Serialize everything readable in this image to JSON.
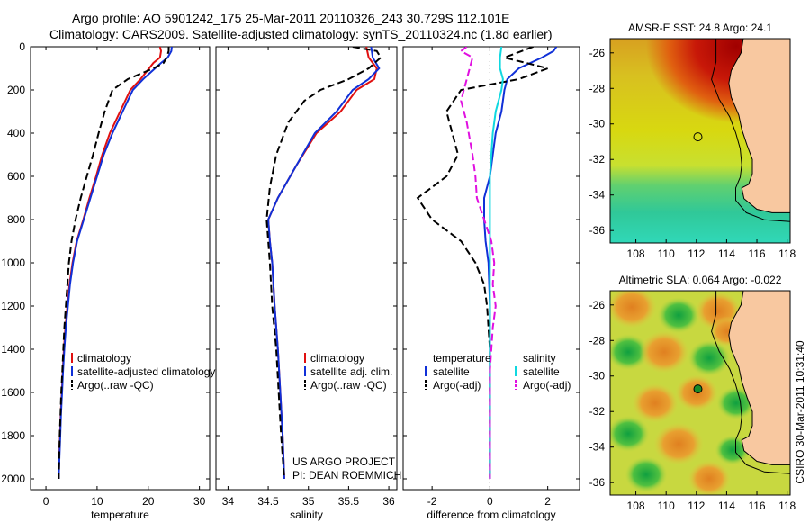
{
  "header": {
    "line1": "Argo profile: AO 5901242_175 25-Mar-2011 20110326_243 30.729S 112.101E",
    "line2": "Climatology: CARS2009. Satellite-adjusted climatology: synTS_20110324.nc (1.8d earlier)"
  },
  "chart_data": [
    {
      "type": "line",
      "id": "temperature",
      "xlabel": "temperature",
      "ylabel": "",
      "xlim": [
        -3,
        32
      ],
      "ylim": [
        2050,
        0
      ],
      "xticks": [
        0,
        10,
        20,
        30
      ],
      "yticks": [
        0,
        200,
        400,
        600,
        800,
        1000,
        1200,
        1400,
        1600,
        1800,
        2000
      ],
      "legend": [
        "climatology",
        "satellite-adjusted climatology",
        "Argo(..raw -QC)"
      ],
      "series": [
        {
          "name": "climatology",
          "color": "#e01010",
          "dash": "",
          "points": [
            [
              22.3,
              0
            ],
            [
              22.5,
              20
            ],
            [
              22.3,
              50
            ],
            [
              21.0,
              75
            ],
            [
              18.5,
              150
            ],
            [
              16.5,
              200
            ],
            [
              14.5,
              300
            ],
            [
              12.5,
              400
            ],
            [
              11.0,
              500
            ],
            [
              9.8,
              600
            ],
            [
              8.5,
              700
            ],
            [
              7.3,
              800
            ],
            [
              6.0,
              900
            ],
            [
              5.2,
              1000
            ],
            [
              4.6,
              1100
            ],
            [
              4.2,
              1200
            ],
            [
              3.8,
              1300
            ],
            [
              3.5,
              1400
            ],
            [
              3.3,
              1500
            ],
            [
              3.1,
              1600
            ],
            [
              2.9,
              1700
            ],
            [
              2.75,
              1800
            ],
            [
              2.6,
              1900
            ],
            [
              2.5,
              2000
            ]
          ]
        },
        {
          "name": "satellite-adjusted climatology",
          "color": "#1030d8",
          "dash": "",
          "points": [
            [
              24.6,
              0
            ],
            [
              24.5,
              20
            ],
            [
              23.8,
              50
            ],
            [
              22.5,
              75
            ],
            [
              19.0,
              150
            ],
            [
              17.0,
              200
            ],
            [
              15.0,
              300
            ],
            [
              13.0,
              400
            ],
            [
              11.3,
              500
            ],
            [
              10.0,
              600
            ],
            [
              8.7,
              700
            ],
            [
              7.4,
              800
            ],
            [
              6.1,
              900
            ],
            [
              5.3,
              1000
            ],
            [
              4.7,
              1100
            ],
            [
              4.3,
              1200
            ],
            [
              3.9,
              1300
            ],
            [
              3.6,
              1400
            ],
            [
              3.35,
              1500
            ],
            [
              3.15,
              1600
            ],
            [
              2.95,
              1700
            ],
            [
              2.8,
              1800
            ],
            [
              2.65,
              1900
            ],
            [
              2.5,
              2000
            ]
          ]
        },
        {
          "name": "Argo(..raw -QC)",
          "color": "#000000",
          "dash": "8,4",
          "points": [
            [
              24.0,
              0
            ],
            [
              24.0,
              20
            ],
            [
              23.6,
              50
            ],
            [
              23.0,
              75
            ],
            [
              21.0,
              100
            ],
            [
              16.0,
              150
            ],
            [
              13.0,
              200
            ],
            [
              11.5,
              300
            ],
            [
              10.3,
              400
            ],
            [
              9.2,
              500
            ],
            [
              8.0,
              600
            ],
            [
              6.8,
              700
            ],
            [
              5.8,
              800
            ],
            [
              5.0,
              900
            ],
            [
              4.5,
              1000
            ],
            [
              4.2,
              1100
            ],
            [
              3.9,
              1200
            ],
            [
              3.6,
              1300
            ],
            [
              3.4,
              1400
            ],
            [
              3.2,
              1500
            ],
            [
              3.0,
              1600
            ],
            [
              2.85,
              1700
            ],
            [
              2.7,
              1800
            ],
            [
              2.6,
              1900
            ],
            [
              2.5,
              2000
            ]
          ]
        }
      ]
    },
    {
      "type": "line",
      "id": "salinity",
      "xlabel": "salinity",
      "ylabel": "",
      "xlim": [
        33.85,
        36.1
      ],
      "ylim": [
        2050,
        0
      ],
      "xticks": [
        34,
        34.5,
        35,
        35.5,
        36
      ],
      "legend": [
        "climatology",
        "satellite adj. clim.",
        "Argo(..raw -QC)"
      ],
      "annotation": [
        "US ARGO PROJECT",
        "PI: DEAN ROEMMICH"
      ],
      "series": [
        {
          "name": "climatology",
          "color": "#e01010",
          "dash": "",
          "points": [
            [
              35.72,
              0
            ],
            [
              35.75,
              50
            ],
            [
              35.85,
              100
            ],
            [
              35.82,
              150
            ],
            [
              35.6,
              200
            ],
            [
              35.4,
              300
            ],
            [
              35.1,
              400
            ],
            [
              34.85,
              550
            ],
            [
              34.62,
              700
            ],
            [
              34.5,
              800
            ],
            [
              34.52,
              900
            ],
            [
              34.55,
              1000
            ],
            [
              34.58,
              1200
            ],
            [
              34.62,
              1400
            ],
            [
              34.65,
              1600
            ],
            [
              34.68,
              1800
            ],
            [
              34.7,
              2000
            ]
          ]
        },
        {
          "name": "satellite adj. clim.",
          "color": "#1030d8",
          "dash": "",
          "points": [
            [
              35.78,
              0
            ],
            [
              35.8,
              50
            ],
            [
              35.88,
              100
            ],
            [
              35.75,
              150
            ],
            [
              35.55,
              200
            ],
            [
              35.35,
              300
            ],
            [
              35.08,
              400
            ],
            [
              34.85,
              550
            ],
            [
              34.62,
              700
            ],
            [
              34.5,
              800
            ],
            [
              34.52,
              900
            ],
            [
              34.55,
              1000
            ],
            [
              34.58,
              1200
            ],
            [
              34.62,
              1400
            ],
            [
              34.65,
              1600
            ],
            [
              34.68,
              1800
            ],
            [
              34.7,
              2000
            ]
          ]
        },
        {
          "name": "Argo(..raw -QC)",
          "color": "#000000",
          "dash": "8,4",
          "points": [
            [
              35.55,
              0
            ],
            [
              35.85,
              20
            ],
            [
              35.9,
              50
            ],
            [
              35.75,
              100
            ],
            [
              35.5,
              150
            ],
            [
              35.15,
              200
            ],
            [
              34.95,
              250
            ],
            [
              34.75,
              350
            ],
            [
              34.6,
              500
            ],
            [
              34.52,
              650
            ],
            [
              34.48,
              800
            ],
            [
              34.5,
              900
            ],
            [
              34.52,
              1000
            ],
            [
              34.55,
              1200
            ],
            [
              34.6,
              1400
            ],
            [
              34.63,
              1600
            ],
            [
              34.66,
              1800
            ],
            [
              34.7,
              2000
            ]
          ]
        }
      ]
    },
    {
      "type": "line",
      "id": "difference",
      "xlabel": "difference from climatology",
      "ylabel": "",
      "xlim": [
        -3,
        3.1
      ],
      "ylim": [
        2050,
        0
      ],
      "xticks": [
        -2,
        0,
        2
      ],
      "legend_groups": [
        {
          "title": "temperature",
          "entries": [
            "satellite",
            "Argo(-adj)"
          ]
        },
        {
          "title": "salinity",
          "entries": [
            "satellite",
            "Argo(-adj)"
          ]
        }
      ],
      "series": [
        {
          "name": "temperature satellite",
          "color": "#1030d8",
          "dash": "",
          "points": [
            [
              2.3,
              0
            ],
            [
              2.2,
              20
            ],
            [
              1.8,
              50
            ],
            [
              1.0,
              100
            ],
            [
              0.6,
              150
            ],
            [
              0.5,
              200
            ],
            [
              0.4,
              300
            ],
            [
              0.2,
              400
            ],
            [
              0.1,
              500
            ],
            [
              0.0,
              600
            ],
            [
              -0.1,
              650
            ],
            [
              -0.2,
              700
            ],
            [
              -0.2,
              800
            ],
            [
              -0.15,
              900
            ],
            [
              -0.05,
              1000
            ],
            [
              0.0,
              1200
            ],
            [
              0.0,
              2000
            ]
          ]
        },
        {
          "name": "temperature Argo(-adj)",
          "color": "#000000",
          "dash": "8,4",
          "points": [
            [
              1.5,
              0
            ],
            [
              0.5,
              50
            ],
            [
              2.0,
              100
            ],
            [
              1.0,
              150
            ],
            [
              -1.0,
              200
            ],
            [
              -1.5,
              300
            ],
            [
              -1.3,
              400
            ],
            [
              -1.1,
              500
            ],
            [
              -1.5,
              600
            ],
            [
              -2.5,
              700
            ],
            [
              -2.0,
              800
            ],
            [
              -1.0,
              900
            ],
            [
              -0.5,
              1000
            ],
            [
              -0.2,
              1100
            ],
            [
              -0.1,
              1200
            ],
            [
              0.0,
              1400
            ],
            [
              0.0,
              2000
            ]
          ]
        },
        {
          "name": "salinity satellite",
          "color": "#10d8e0",
          "dash": "",
          "points": [
            [
              0.4,
              0
            ],
            [
              0.35,
              50
            ],
            [
              0.35,
              100
            ],
            [
              0.45,
              150
            ],
            [
              0.4,
              200
            ],
            [
              0.2,
              300
            ],
            [
              0.1,
              400
            ],
            [
              0.05,
              500
            ],
            [
              0.0,
              600
            ],
            [
              0.0,
              2000
            ]
          ]
        },
        {
          "name": "salinity Argo(-adj)",
          "color": "#e010e0",
          "dash": "8,4",
          "points": [
            [
              -0.8,
              0
            ],
            [
              -1.0,
              20
            ],
            [
              -0.6,
              50
            ],
            [
              -0.8,
              150
            ],
            [
              -1.0,
              250
            ],
            [
              -0.8,
              350
            ],
            [
              -0.6,
              500
            ],
            [
              -0.5,
              600
            ],
            [
              -0.45,
              700
            ],
            [
              -0.2,
              800
            ],
            [
              0.05,
              900
            ],
            [
              0.15,
              1000
            ],
            [
              0.1,
              1100
            ],
            [
              0.2,
              1200
            ],
            [
              0.1,
              1300
            ],
            [
              0.05,
              1400
            ],
            [
              0.0,
              1500
            ],
            [
              0.0,
              2000
            ]
          ]
        }
      ]
    }
  ],
  "maps": [
    {
      "id": "sst",
      "title": "AMSR-E SST: 24.8 Argo: 24.1",
      "xticks": [
        108,
        110,
        112,
        114,
        116,
        118
      ],
      "yticks": [
        -26,
        -28,
        -30,
        -32,
        -34,
        -36
      ],
      "xlim": [
        106.3,
        118.2
      ],
      "ylim": [
        -36.7,
        -25.2
      ],
      "marker": {
        "lon": 112.101,
        "lat": -30.729,
        "fill": "none"
      }
    },
    {
      "id": "sla",
      "title": "Altimetric SLA: 0.064 Argo: -0.022",
      "xticks": [
        108,
        110,
        112,
        114,
        116,
        118
      ],
      "yticks": [
        -26,
        -28,
        -30,
        -32,
        -34,
        -36
      ],
      "xlim": [
        106.3,
        118.2
      ],
      "ylim": [
        -36.7,
        -25.2
      ],
      "marker": {
        "lon": 112.101,
        "lat": -30.729,
        "fill": "#1a8a2a"
      }
    }
  ],
  "side_label": "CSIRO 30-Mar-2011 10:31:40",
  "colors": {
    "climatology": "#e01010",
    "satellite": "#1030d8",
    "argo": "#000000",
    "salinity_satellite": "#10d8e0",
    "salinity_argo": "#e010e0",
    "land": "#f8c8a0"
  }
}
